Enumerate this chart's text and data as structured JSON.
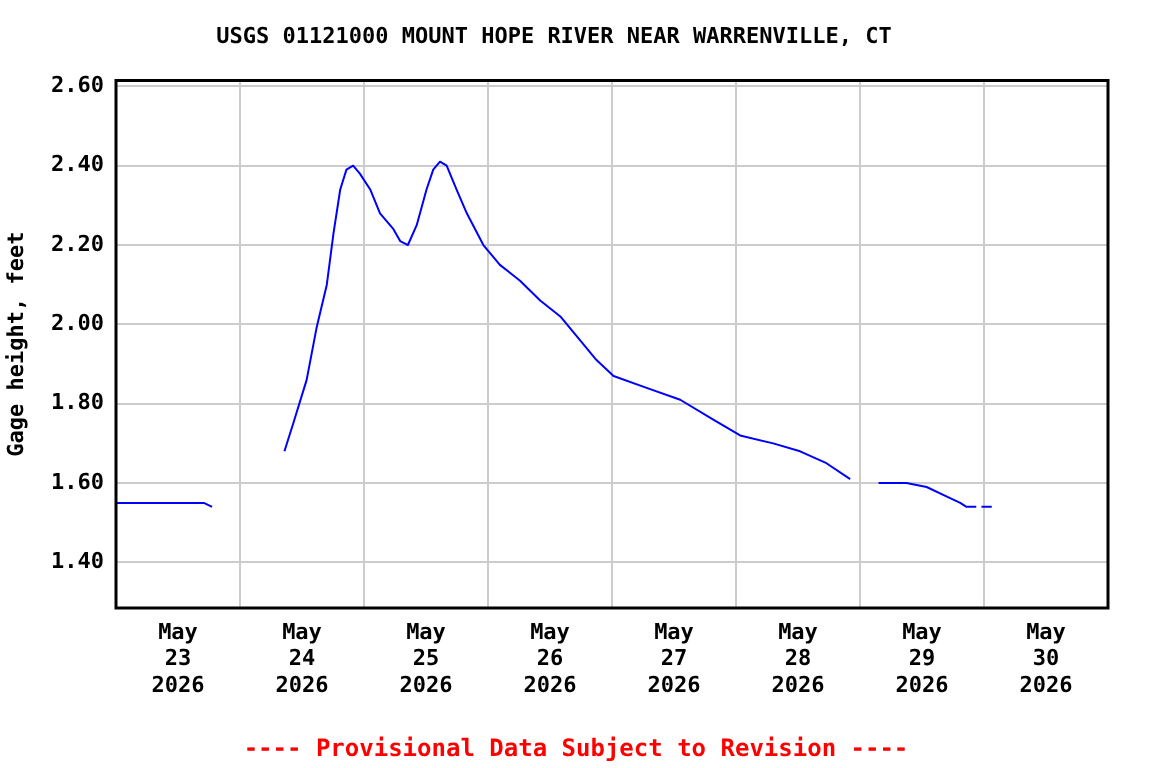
{
  "chart_data": {
    "type": "line",
    "title": "USGS 01121000 MOUNT HOPE RIVER NEAR WARRENVILLE, CT",
    "ylabel": "Gage height, feet",
    "annotations": [
      "---- Provisional Data Subject to Revision ----"
    ],
    "series": [
      {
        "color": "#0000ff",
        "x": [
          "2026-05-23T00:00",
          "2026-05-23T06:00",
          "2026-05-23T12:00",
          "2026-05-23T17:00",
          "2026-05-23T18:36",
          "2026-05-23T20:00",
          "2026-05-24T08:36",
          "2026-05-24T10:18",
          "2026-05-24T12:54",
          "2026-05-24T14:48",
          "2026-05-24T16:48",
          "2026-05-24T18:06",
          "2026-05-24T19:24",
          "2026-05-24T20:36",
          "2026-05-24T21:54",
          "2026-05-24T23:12",
          "2026-05-25T01:12",
          "2026-05-25T03:06",
          "2026-05-25T05:42",
          "2026-05-25T07:00",
          "2026-05-25T08:30",
          "2026-05-25T10:12",
          "2026-05-25T12:06",
          "2026-05-25T13:24",
          "2026-05-25T14:42",
          "2026-05-25T16:00",
          "2026-05-25T17:54",
          "2026-05-25T19:54",
          "2026-05-25T23:06",
          "2026-05-26T02:18",
          "2026-05-26T06:12",
          "2026-05-26T10:06",
          "2026-05-26T14:00",
          "2026-05-26T17:48",
          "2026-05-26T21:00",
          "2026-05-27T00:18",
          "2026-05-27T06:42",
          "2026-05-27T13:12",
          "2026-05-27T19:36",
          "2026-05-28T00:48",
          "2026-05-28T07:12",
          "2026-05-28T12:24",
          "2026-05-28T17:30",
          "2026-05-28T22:06",
          "2026-05-29T00:00",
          "2026-05-29T03:36",
          "2026-05-29T09:00",
          "2026-05-29T12:54",
          "2026-05-29T16:06",
          "2026-05-29T19:24",
          "2026-05-29T20:36",
          "2026-05-29T22:30",
          "2026-05-29T23:00",
          "2026-05-29T23:30",
          "2026-05-30T01:30"
        ],
        "values": [
          1.55,
          1.55,
          1.55,
          1.55,
          1.54,
          null,
          1.68,
          1.75,
          1.86,
          1.99,
          2.1,
          2.23,
          2.34,
          2.39,
          2.4,
          2.38,
          2.34,
          2.28,
          2.24,
          2.21,
          2.2,
          2.25,
          2.34,
          2.39,
          2.41,
          2.4,
          2.34,
          2.28,
          2.2,
          2.15,
          2.11,
          2.06,
          2.02,
          1.96,
          1.91,
          1.87,
          1.84,
          1.81,
          1.76,
          1.72,
          1.7,
          1.68,
          1.65,
          1.61,
          null,
          1.6,
          1.6,
          1.59,
          1.57,
          1.55,
          1.54,
          1.54,
          null,
          1.54,
          1.54
        ]
      }
    ],
    "xlim": [
      "2026-05-23T00:00",
      "2026-05-31T00:00"
    ],
    "xticks": [
      {
        "value": "2026-05-23T00:00",
        "label": null
      },
      {
        "value": "2026-05-23T12:00",
        "label": "May 23 2026"
      },
      {
        "value": "2026-05-24T00:00",
        "label": null
      },
      {
        "value": "2026-05-24T12:00",
        "label": "May 24 2026"
      },
      {
        "value": "2026-05-25T00:00",
        "label": null
      },
      {
        "value": "2026-05-25T12:00",
        "label": "May 25 2026"
      },
      {
        "value": "2026-05-26T00:00",
        "label": null
      },
      {
        "value": "2026-05-26T12:00",
        "label": "May 26 2026"
      },
      {
        "value": "2026-05-27T00:00",
        "label": null
      },
      {
        "value": "2026-05-27T12:00",
        "label": "May 27 2026"
      },
      {
        "value": "2026-05-28T00:00",
        "label": null
      },
      {
        "value": "2026-05-28T12:00",
        "label": "May 28 2026"
      },
      {
        "value": "2026-05-29T00:00",
        "label": null
      },
      {
        "value": "2026-05-29T12:00",
        "label": "May 29 2026"
      },
      {
        "value": "2026-05-30T00:00",
        "label": null
      },
      {
        "value": "2026-05-30T12:00",
        "label": "May 30 2026"
      },
      {
        "value": "2026-05-31T00:00",
        "label": null
      }
    ],
    "ylim": [
      1.285,
      2.615
    ],
    "yticks": [
      {
        "value": 1.4,
        "label": "1.40"
      },
      {
        "value": 1.6,
        "label": "1.60"
      },
      {
        "value": 1.8,
        "label": "1.80"
      },
      {
        "value": 2.0,
        "label": "2.00"
      },
      {
        "value": 2.2,
        "label": "2.20"
      },
      {
        "value": 2.4,
        "label": "2.40"
      },
      {
        "value": 2.6,
        "label": "2.60"
      }
    ],
    "grid": true,
    "legend": false,
    "marker": "none",
    "line_style": "solid"
  }
}
